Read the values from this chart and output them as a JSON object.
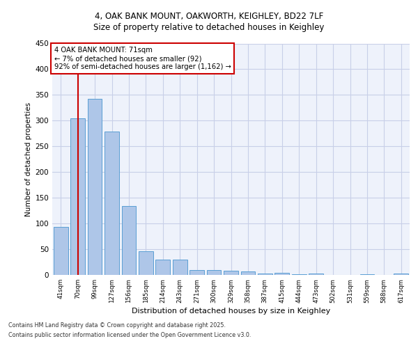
{
  "title1": "4, OAK BANK MOUNT, OAKWORTH, KEIGHLEY, BD22 7LF",
  "title2": "Size of property relative to detached houses in Keighley",
  "xlabel": "Distribution of detached houses by size in Keighley",
  "ylabel": "Number of detached properties",
  "categories": [
    "41sqm",
    "70sqm",
    "99sqm",
    "127sqm",
    "156sqm",
    "185sqm",
    "214sqm",
    "243sqm",
    "271sqm",
    "300sqm",
    "329sqm",
    "358sqm",
    "387sqm",
    "415sqm",
    "444sqm",
    "473sqm",
    "502sqm",
    "531sqm",
    "559sqm",
    "588sqm",
    "617sqm"
  ],
  "values": [
    94,
    305,
    342,
    279,
    134,
    46,
    30,
    30,
    10,
    10,
    8,
    7,
    3,
    4,
    1,
    3,
    0,
    0,
    2,
    0,
    3
  ],
  "bar_color": "#aec6e8",
  "bar_edge_color": "#5a9fd4",
  "background_color": "#eef2fb",
  "grid_color": "#c8cfe8",
  "vline_x": 1.0,
  "vline_color": "#cc0000",
  "annotation_text": "4 OAK BANK MOUNT: 71sqm\n← 7% of detached houses are smaller (92)\n92% of semi-detached houses are larger (1,162) →",
  "annotation_box_color": "#ffffff",
  "annotation_box_edge": "#cc0000",
  "footer1": "Contains HM Land Registry data © Crown copyright and database right 2025.",
  "footer2": "Contains public sector information licensed under the Open Government Licence v3.0.",
  "ylim": [
    0,
    450
  ],
  "yticks": [
    0,
    50,
    100,
    150,
    200,
    250,
    300,
    350,
    400,
    450
  ]
}
